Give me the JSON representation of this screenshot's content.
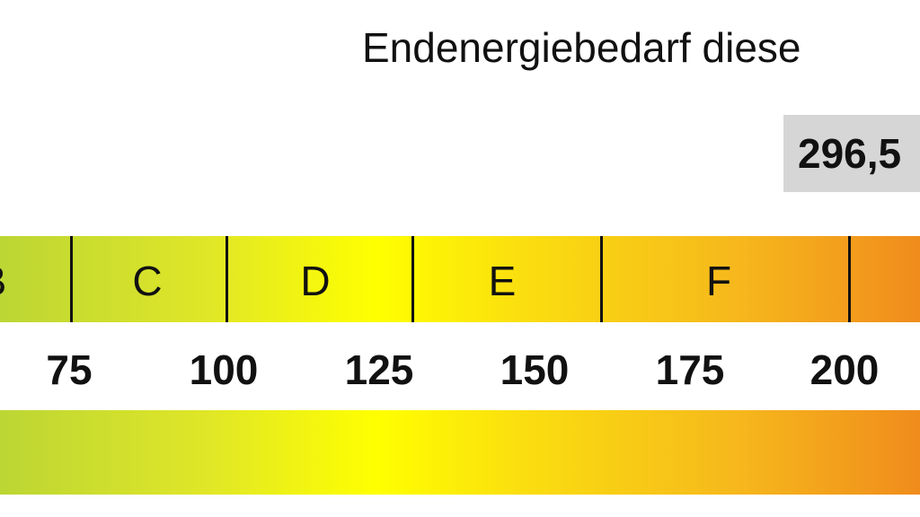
{
  "header": {
    "title": "Endenergiebedarf diese",
    "value": "296,5"
  },
  "scale": {
    "classes": [
      "B",
      "C",
      "D",
      "E",
      "F"
    ],
    "ticks": [
      "75",
      "100",
      "125",
      "150",
      "175",
      "200"
    ],
    "colors": {
      "green": "#bcd634",
      "yellow": "#ffff00",
      "orange": "#f08c1c"
    }
  }
}
